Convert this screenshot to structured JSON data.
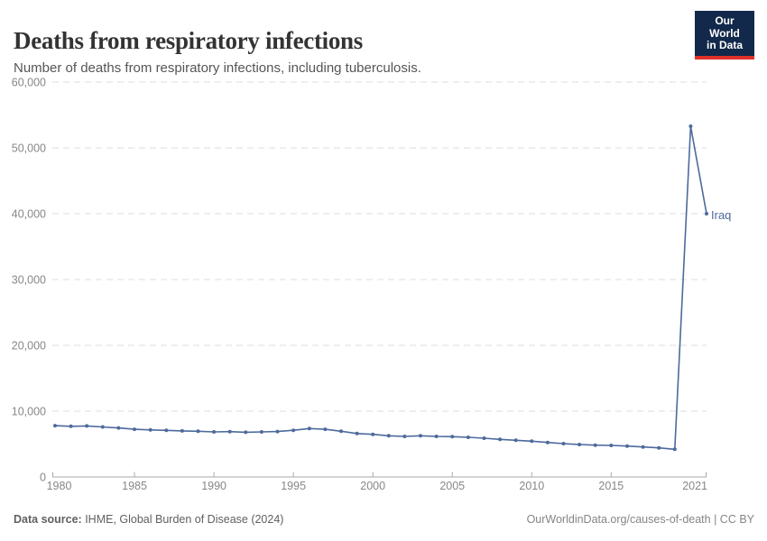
{
  "header": {
    "title": "Deaths from respiratory infections",
    "subtitle": "Number of deaths from respiratory infections, including tuberculosis."
  },
  "logo": {
    "line1": "Our World",
    "line2": "in Data",
    "bg_color": "#12294B",
    "accent_color": "#E0312B"
  },
  "footer": {
    "source_label": "Data source:",
    "source_value": " IHME, Global Burden of Disease (2024)",
    "link": "OurWorldinData.org/causes-of-death | CC BY"
  },
  "colors": {
    "line": "#4C6A9C",
    "grid": "#DEDEDE",
    "axis": "#A9A9A9",
    "tick_text": "#878787",
    "title": "#333333",
    "subtitle": "#555555"
  },
  "chart_data": {
    "type": "line",
    "title": "Deaths from respiratory infections",
    "subtitle": "Number of deaths from respiratory infections, including tuberculosis.",
    "xlabel": "",
    "ylabel": "",
    "xlim": [
      1980,
      2021
    ],
    "ylim": [
      0,
      60000
    ],
    "grid": "horizontal-dashed",
    "legend_position": "end-of-line-label",
    "x": [
      1980,
      1981,
      1982,
      1983,
      1984,
      1985,
      1986,
      1987,
      1988,
      1989,
      1990,
      1991,
      1992,
      1993,
      1994,
      1995,
      1996,
      1997,
      1998,
      1999,
      2000,
      2001,
      2002,
      2003,
      2004,
      2005,
      2006,
      2007,
      2008,
      2009,
      2010,
      2011,
      2012,
      2013,
      2014,
      2015,
      2016,
      2017,
      2018,
      2019,
      2020,
      2021
    ],
    "series": [
      {
        "name": "Iraq",
        "color": "#4C6A9C",
        "values": [
          7800,
          7700,
          7750,
          7600,
          7450,
          7250,
          7150,
          7080,
          7000,
          6950,
          6850,
          6890,
          6800,
          6850,
          6900,
          7100,
          7350,
          7250,
          6950,
          6600,
          6480,
          6260,
          6160,
          6260,
          6160,
          6120,
          6030,
          5890,
          5710,
          5580,
          5440,
          5250,
          5070,
          4930,
          4840,
          4800,
          4700,
          4560,
          4430,
          4200,
          53290,
          40000
        ]
      }
    ],
    "yticks": [
      0,
      10000,
      20000,
      30000,
      40000,
      50000,
      60000
    ],
    "ytick_labels": [
      "0",
      "10,000",
      "20,000",
      "30,000",
      "40,000",
      "50,000",
      "60,000"
    ],
    "xticks": [
      1980,
      1985,
      1990,
      1995,
      2000,
      2005,
      2010,
      2015,
      2021
    ],
    "xtick_labels": [
      "1980",
      "1985",
      "1990",
      "1995",
      "2000",
      "2005",
      "2010",
      "2015",
      "2021"
    ]
  }
}
